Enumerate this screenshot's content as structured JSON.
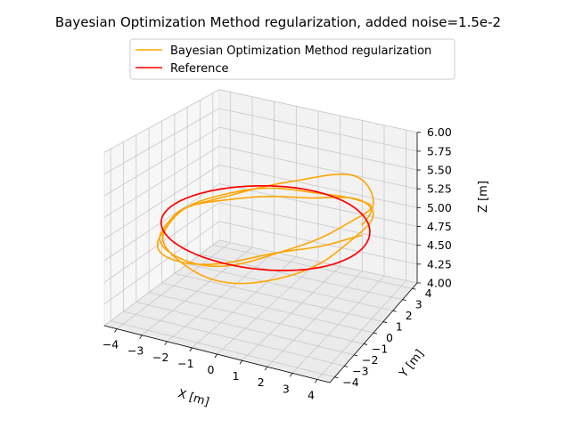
{
  "chart_data": {
    "type": "line",
    "projection": "3d",
    "title": "Bayesian Optimization Method regularization, added noise=1.5e-2",
    "xlabel": "X [m]",
    "ylabel": "Y [m]",
    "zlabel": "Z [m]",
    "xlim": [
      -4.5,
      4.5
    ],
    "ylim": [
      -4.5,
      4.5
    ],
    "zlim": [
      4.0,
      6.0
    ],
    "xticks": [
      "−4",
      "−3",
      "−2",
      "−1",
      "0",
      "1",
      "2",
      "3",
      "4"
    ],
    "yticks": [
      "−4",
      "−3",
      "−2",
      "−1",
      "0",
      "1",
      "2",
      "3",
      "4"
    ],
    "zticks": [
      "4.00",
      "4.25",
      "4.50",
      "4.75",
      "5.00",
      "5.25",
      "5.50",
      "5.75",
      "6.00"
    ],
    "grid": true,
    "legend_position": "top-center",
    "series": [
      {
        "name": "Bayesian Optimization Method regularization",
        "color": "#ffa500",
        "shape": "noisy circular orbit",
        "radius_m": 4.0,
        "center_m": [
          0,
          0
        ],
        "z_m_range": [
          4.6,
          5.45
        ],
        "laps": 3
      },
      {
        "name": "Reference",
        "color": "#ff0000",
        "shape": "circle",
        "radius_m": 4.0,
        "center_m": [
          0,
          0
        ],
        "z_m": 5.0
      }
    ]
  }
}
